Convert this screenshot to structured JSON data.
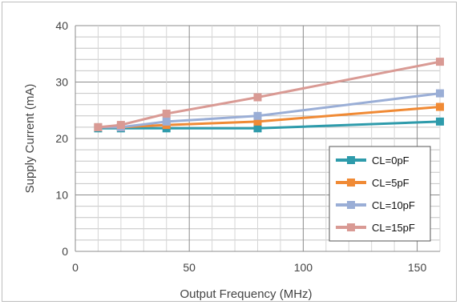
{
  "chart_data": {
    "type": "line",
    "xlabel": "Output Frequency (MHz)",
    "ylabel": "Supply Current (mA)",
    "xlim": [
      0,
      160
    ],
    "ylim": [
      0,
      40
    ],
    "xticks": [
      0,
      50,
      100,
      150
    ],
    "yticks": [
      0,
      10,
      20,
      30,
      40
    ],
    "grid": "major and minor",
    "legend_position": "bottom-right",
    "series": [
      {
        "name": "CL=0pF",
        "color": "#2e9bab",
        "x": [
          10,
          20,
          40,
          80,
          160
        ],
        "y": [
          21.8,
          21.8,
          21.8,
          21.8,
          23.0
        ]
      },
      {
        "name": "CL=5pF",
        "color": "#f08a35",
        "x": [
          10,
          20,
          40,
          80,
          160
        ],
        "y": [
          22.0,
          22.0,
          22.4,
          23.0,
          25.6
        ]
      },
      {
        "name": "CL=10pF",
        "color": "#9aaed6",
        "x": [
          10,
          20,
          40,
          80,
          160
        ],
        "y": [
          22.0,
          22.0,
          23.0,
          24.0,
          28.0
        ]
      },
      {
        "name": "CL=15pF",
        "color": "#d99a94",
        "x": [
          10,
          20,
          40,
          80,
          160
        ],
        "y": [
          22.0,
          22.4,
          24.4,
          27.3,
          33.6
        ]
      }
    ]
  }
}
